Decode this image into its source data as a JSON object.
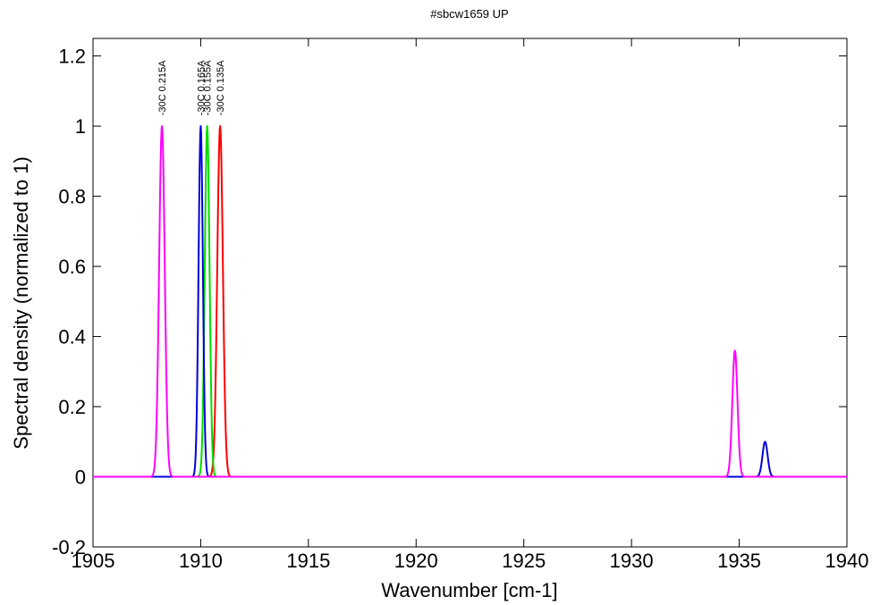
{
  "chart_data": {
    "type": "line",
    "title": "#sbcw1659 UP",
    "xlabel": "Wavenumber [cm-1]",
    "ylabel": "Spectral density (normalized to 1)",
    "xlim": [
      1905,
      1940
    ],
    "ylim": [
      -0.2,
      1.25
    ],
    "xticks": [
      1905,
      1910,
      1915,
      1920,
      1925,
      1930,
      1935,
      1940
    ],
    "xtick_labels": [
      "1905",
      "1910",
      "1915",
      "1920",
      "1925",
      "1930",
      "1935",
      "1940"
    ],
    "yticks": [
      -0.2,
      0,
      0.2,
      0.4,
      0.6,
      0.8,
      1,
      1.2
    ],
    "ytick_labels": [
      "-0.2",
      "0",
      "0.2",
      "0.4",
      "0.6",
      "0.8",
      "1",
      "1.2"
    ],
    "grid": false,
    "series": [
      {
        "name": "-30C 0.135A",
        "color": "#ff0000",
        "peaks": [
          {
            "center": 1910.9,
            "height": 1.0,
            "width": 0.13
          }
        ]
      },
      {
        "name": "-30C 0.155A",
        "color": "#00dd00",
        "peaks": [
          {
            "center": 1910.3,
            "height": 1.0,
            "width": 0.11
          }
        ]
      },
      {
        "name": "-30C 0.165A",
        "color": "#0000dd",
        "peaks": [
          {
            "center": 1910.0,
            "height": 1.0,
            "width": 0.1
          },
          {
            "center": 1936.2,
            "height": 0.1,
            "width": 0.12
          }
        ]
      },
      {
        "name": "-30C 0.215A",
        "color": "#ff00ff",
        "peaks": [
          {
            "center": 1908.2,
            "height": 1.0,
            "width": 0.13
          },
          {
            "center": 1934.8,
            "height": 0.36,
            "width": 0.12
          }
        ]
      }
    ]
  }
}
